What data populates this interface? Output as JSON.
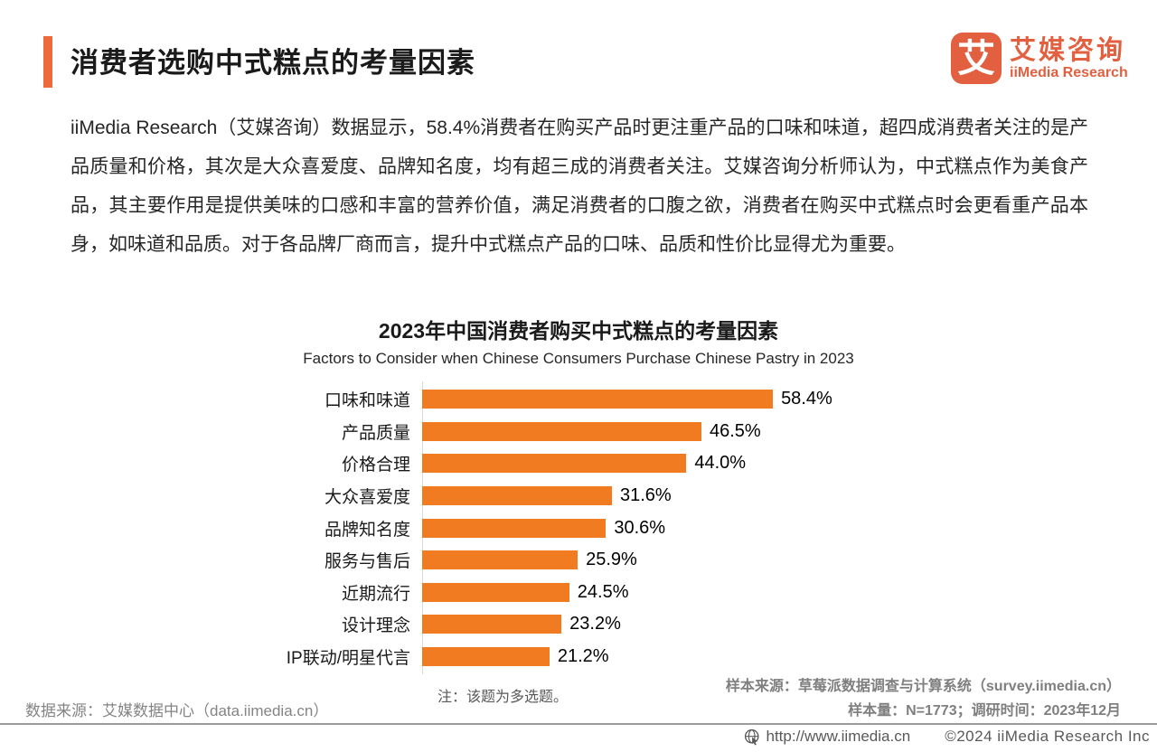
{
  "header": {
    "title": "消费者选购中式糕点的考量因素",
    "logo": {
      "icon_char": "艾",
      "name_cn": "艾媒咨询",
      "name_en": "iiMedia Research"
    }
  },
  "body_text": "iiMedia Research（艾媒咨询）数据显示，58.4%消费者在购买产品时更注重产品的口味和味道，超四成消费者关注的是产品质量和价格，其次是大众喜爱度、品牌知名度，均有超三成的消费者关注。艾媒咨询分析师认为，中式糕点作为美食产品，其主要作用是提供美味的口感和丰富的营养价值，满足消费者的口腹之欲，消费者在购买中式糕点时会更看重产品本身，如味道和品质。对于各品牌厂商而言，提升中式糕点产品的口味、品质和性价比显得尤为重要。",
  "chart_data": {
    "type": "bar",
    "orientation": "horizontal",
    "title": "2023年中国消费者购买中式糕点的考量因素",
    "subtitle": "Factors to Consider when Chinese Consumers Purchase Chinese Pastry in 2023",
    "categories": [
      "口味和味道",
      "产品质量",
      "价格合理",
      "大众喜爱度",
      "品牌知名度",
      "服务与售后",
      "近期流行",
      "设计理念",
      "IP联动/明星代言"
    ],
    "values": [
      58.4,
      46.5,
      44.0,
      31.6,
      30.6,
      25.9,
      24.5,
      23.2,
      21.2
    ],
    "value_labels": [
      "58.4%",
      "46.5%",
      "44.0%",
      "31.6%",
      "30.6%",
      "25.9%",
      "24.5%",
      "23.2%",
      "21.2%"
    ],
    "xlim": [
      0,
      62
    ],
    "bar_color": "#F07B21",
    "grid": false,
    "legend": "none",
    "note": "注：该题为多选题。"
  },
  "footer": {
    "data_source": "数据来源：艾媒数据中心（data.iimedia.cn）",
    "sample_source": "样本来源：草莓派数据调查与计算系统（survey.iimedia.cn）",
    "sample_info": "样本量：N=1773；调研时间：2023年12月",
    "website": "http://www.iimedia.cn",
    "copyright": "©2024  iiMedia Research  Inc"
  },
  "colors": {
    "accent": "#EC6A3C",
    "logo": "#E2603F",
    "bar": "#F07B21",
    "footer_text": "#7F7F7F"
  }
}
